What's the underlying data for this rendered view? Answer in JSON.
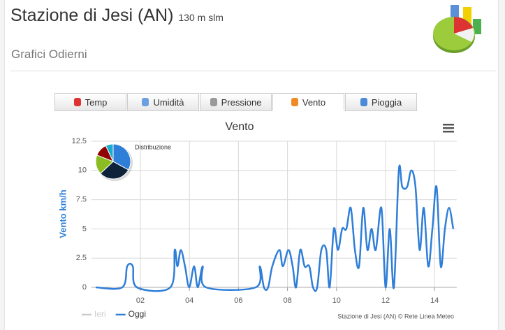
{
  "header": {
    "title": "Stazione di Jesi (AN)",
    "altitude": "130 m slm",
    "subtitle": "Grafici Odierni"
  },
  "tabs": {
    "items": [
      "Temp",
      "Umidità",
      "Pressione",
      "Vento",
      "Pioggia"
    ],
    "active": 3
  },
  "chart_data": {
    "type": "line",
    "title": "Vento",
    "y_label": "Vento km/h",
    "credits": "Stazione di Jesi (AN) © Rete Linea Meteo",
    "x": [
      0.18,
      1.26,
      1.46,
      1.69,
      1.86,
      3.22,
      3.4,
      3.51,
      3.65,
      3.82,
      3.99,
      4.19,
      4.34,
      4.54,
      4.68,
      6.7,
      6.87,
      7.04,
      7.21,
      7.38,
      7.67,
      7.81,
      8.04,
      8.21,
      8.35,
      8.52,
      8.7,
      8.89,
      9.04,
      9.21,
      9.38,
      9.58,
      9.72,
      9.89,
      10.06,
      10.23,
      10.4,
      10.58,
      10.75,
      10.92,
      11.09,
      11.26,
      11.43,
      11.6,
      11.83,
      12.0,
      12.17,
      12.34,
      12.54,
      12.68,
      12.88,
      13.05,
      13.22,
      13.39,
      13.56,
      13.74,
      13.91,
      14.08,
      14.25,
      14.42,
      14.59,
      14.76
    ],
    "series": [
      {
        "name": "Ieri",
        "color": "#cccccc",
        "hidden": true,
        "values": [
          null,
          null,
          null,
          null,
          null,
          null,
          null,
          null,
          null,
          null,
          null,
          null,
          null,
          null,
          null,
          null,
          null,
          null,
          null,
          null,
          null,
          null,
          null,
          null,
          null,
          null,
          null,
          null,
          null,
          null,
          null,
          null,
          null,
          null,
          null,
          null,
          null,
          null,
          null,
          null,
          null,
          null,
          null,
          null,
          null,
          null,
          null,
          null,
          null,
          null,
          null,
          null,
          null,
          null,
          null,
          null,
          null,
          null,
          null,
          null,
          null,
          null
        ]
      },
      {
        "name": "Oggi",
        "color": "#2f7ed8",
        "hidden": false,
        "values": [
          0,
          0,
          1.8,
          1.8,
          0,
          0,
          3.2,
          1.8,
          3.2,
          1.8,
          0,
          1.8,
          0,
          1.8,
          0,
          0,
          1.8,
          0,
          0,
          1.8,
          3.2,
          1.8,
          3.2,
          1.8,
          0,
          3.2,
          1.8,
          1.8,
          0,
          0,
          3.2,
          3.2,
          0,
          5,
          3.2,
          5,
          5,
          6.8,
          3.2,
          1.8,
          6.8,
          3.2,
          5,
          3.2,
          6.8,
          0,
          5,
          0,
          10,
          8.6,
          8.6,
          10,
          8.6,
          3.2,
          6.8,
          1.8,
          5,
          8.6,
          1.8,
          5,
          6.8,
          5
        ]
      }
    ],
    "xlim": [
      0,
      14.9
    ],
    "xticks": [
      {
        "value": 2,
        "label": "02"
      },
      {
        "value": 4,
        "label": "04"
      },
      {
        "value": 6,
        "label": "06"
      },
      {
        "value": 8,
        "label": "08"
      },
      {
        "value": 10,
        "label": "10"
      },
      {
        "value": 12,
        "label": "12"
      },
      {
        "value": 14,
        "label": "14"
      }
    ],
    "ylim": [
      0,
      12.5
    ],
    "yticks": [
      0,
      2.5,
      5,
      7.5,
      10,
      12.5
    ],
    "grid": true,
    "pie": {
      "title": "Distribuzione",
      "values": [
        33,
        30,
        18,
        12,
        7
      ],
      "colors": [
        "#2f7ed8",
        "#0d233a",
        "#8bbc21",
        "#910000",
        "#1aadce"
      ]
    }
  }
}
